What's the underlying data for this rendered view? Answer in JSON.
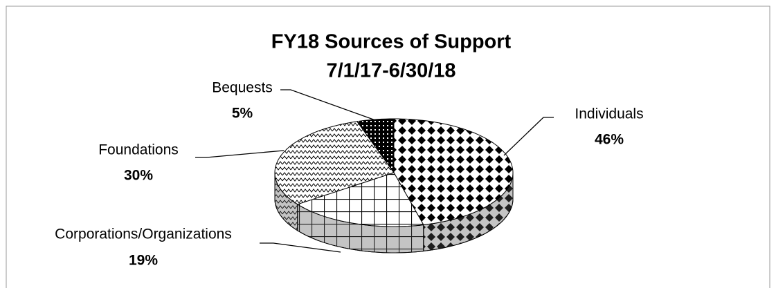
{
  "chart_data": {
    "type": "pie",
    "title": [
      "FY18 Sources of Support",
      "7/1/17-6/30/18"
    ],
    "categories": [
      "Individuals",
      "Corporations/Organizations",
      "Foundations",
      "Bequests"
    ],
    "values": [
      46,
      19,
      30,
      5
    ],
    "value_labels": [
      "46%",
      "19%",
      "30%",
      "5%"
    ]
  }
}
